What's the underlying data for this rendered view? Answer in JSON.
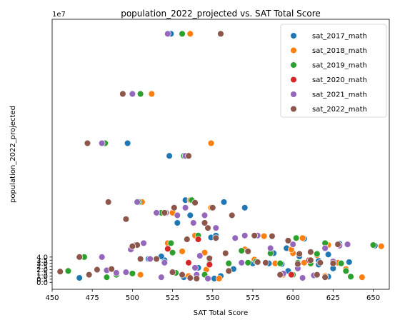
{
  "chart_data": {
    "type": "scatter",
    "title": "population_2022_projected vs. SAT Total Score",
    "xlabel": "SAT Total Score",
    "ylabel": "population_2022_projected",
    "y_multiplier_label": "1e7",
    "xlim": [
      450,
      660
    ],
    "ylim": [
      -1.1,
      41.6
    ],
    "x_ticks": [
      450,
      475,
      500,
      525,
      550,
      575,
      600,
      625,
      650
    ],
    "y_ticks": [
      0.0,
      0.5,
      1.0,
      1.5,
      2.0,
      2.5,
      3.0,
      3.5,
      4.0
    ],
    "y_tick_labels": [
      "0.0",
      "0.5",
      "1.0",
      "1.5",
      "2.0",
      "2.5",
      "3.0",
      "3.5",
      "4.0"
    ],
    "grid": false,
    "legend_position": "top-right",
    "marker_edge_color": "#ffffff",
    "series": [
      {
        "name": "sat_2017_math",
        "color": "#1f77b4",
        "points": [
          [
            524,
            39.3
          ],
          [
            497,
            22.0
          ],
          [
            523,
            20.0
          ],
          [
            533,
            13.0
          ],
          [
            557,
            12.7
          ],
          [
            570,
            11.8
          ],
          [
            536,
            10.6
          ],
          [
            549,
            7.1
          ],
          [
            552,
            7.4
          ],
          [
            528,
            9.4
          ],
          [
            520,
            3.5
          ],
          [
            524,
            6.2
          ],
          [
            534,
            6.8
          ],
          [
            510,
            3.7
          ],
          [
            518,
            4.1
          ],
          [
            541,
            2.3
          ],
          [
            563,
            2.1
          ],
          [
            588,
            4.6
          ],
          [
            596,
            5.4
          ],
          [
            593,
            2.9
          ],
          [
            607,
            6.9
          ],
          [
            616,
            3.4
          ],
          [
            604,
            4.1
          ],
          [
            622,
            4.4
          ],
          [
            629,
            6.1
          ],
          [
            635,
            3.2
          ],
          [
            651,
            5.8
          ],
          [
            614,
            1.1
          ],
          [
            622,
            0.9
          ],
          [
            532,
            0.8
          ],
          [
            555,
            1.0
          ],
          [
            467,
            0.7
          ],
          [
            500,
            1.4
          ],
          [
            551,
            0.6
          ],
          [
            597,
            1.8
          ],
          [
            616,
            2.8
          ],
          [
            585,
            3.0
          ],
          [
            625,
            2.2
          ],
          [
            575,
            3.0
          ]
        ]
      },
      {
        "name": "sat_2018_math",
        "color": "#ff7f0e",
        "points": [
          [
            536,
            39.3
          ],
          [
            512,
            29.8
          ],
          [
            549,
            22.0
          ],
          [
            534,
            20.0
          ],
          [
            536,
            13.0
          ],
          [
            506,
            12.7
          ],
          [
            549,
            11.8
          ],
          [
            528,
            10.6
          ],
          [
            525,
            11.0
          ],
          [
            539,
            7.4
          ],
          [
            522,
            6.2
          ],
          [
            552,
            8.6
          ],
          [
            531,
            4.9
          ],
          [
            546,
            2.0
          ],
          [
            545,
            4.7
          ],
          [
            570,
            5.2
          ],
          [
            576,
            3.6
          ],
          [
            600,
            4.6
          ],
          [
            606,
            7.0
          ],
          [
            594,
            1.2
          ],
          [
            622,
            5.9
          ],
          [
            611,
            2.9
          ],
          [
            628,
            3.1
          ],
          [
            643,
            0.8
          ],
          [
            655,
            5.7
          ],
          [
            620,
            1.0
          ],
          [
            505,
            1.2
          ],
          [
            535,
            1.0
          ],
          [
            554,
            0.6
          ],
          [
            589,
            3.0
          ],
          [
            607,
            3.1
          ],
          [
            582,
            7.3
          ],
          [
            599,
            5.2
          ],
          [
            633,
            2.1
          ],
          [
            615,
            4.3
          ]
        ]
      },
      {
        "name": "sat_2019_math",
        "color": "#2ca02c",
        "points": [
          [
            531,
            39.3
          ],
          [
            505,
            29.8
          ],
          [
            483,
            22.0
          ],
          [
            532,
            20.0
          ],
          [
            537,
            13.0
          ],
          [
            504,
            12.7
          ],
          [
            518,
            11.0
          ],
          [
            524,
            6.2
          ],
          [
            541,
            7.4
          ],
          [
            534,
            6.8
          ],
          [
            470,
            4.0
          ],
          [
            460,
            1.8
          ],
          [
            500,
            1.4
          ],
          [
            527,
            1.5
          ],
          [
            560,
            3.0
          ],
          [
            577,
            3.3
          ],
          [
            568,
            5.0
          ],
          [
            586,
            4.6
          ],
          [
            602,
            7.0
          ],
          [
            620,
            6.2
          ],
          [
            611,
            3.0
          ],
          [
            600,
            1.2
          ],
          [
            633,
            1.8
          ],
          [
            636,
            0.9
          ],
          [
            650,
            5.9
          ],
          [
            615,
            4.5
          ],
          [
            525,
            4.7
          ],
          [
            545,
            1.2
          ],
          [
            592,
            3.0
          ],
          [
            630,
            3.0
          ],
          [
            490,
            1.2
          ],
          [
            572,
            3.1
          ],
          [
            548,
            3.0
          ],
          [
            603,
            3.1
          ],
          [
            484,
            0.8
          ]
        ]
      },
      {
        "name": "sat_2020_math",
        "color": "#d62728",
        "points": [
          [
            541,
            6.8
          ],
          [
            522,
            5.3
          ],
          [
            548,
            2.8
          ],
          [
            610,
            3.5
          ],
          [
            535,
            3.1
          ],
          [
            599,
            1.2
          ]
        ]
      },
      {
        "name": "sat_2021_math",
        "color": "#9467bd",
        "points": [
          [
            522,
            39.3
          ],
          [
            500,
            29.8
          ],
          [
            481,
            22.0
          ],
          [
            533,
            20.0
          ],
          [
            503,
            12.7
          ],
          [
            515,
            11.0
          ],
          [
            533,
            11.8
          ],
          [
            521,
            11.0
          ],
          [
            528,
            10.6
          ],
          [
            538,
            9.4
          ],
          [
            545,
            10.6
          ],
          [
            552,
            8.6
          ],
          [
            502,
            5.9
          ],
          [
            507,
            6.2
          ],
          [
            499,
            5.2
          ],
          [
            511,
            3.7
          ],
          [
            520,
            3.1
          ],
          [
            542,
            4.2
          ],
          [
            564,
            7.0
          ],
          [
            570,
            7.4
          ],
          [
            578,
            7.4
          ],
          [
            600,
            6.0
          ],
          [
            613,
            1.1
          ],
          [
            620,
            5.4
          ],
          [
            629,
            5.8
          ],
          [
            634,
            6.0
          ],
          [
            481,
            4.0
          ],
          [
            484,
            1.9
          ],
          [
            490,
            1.5
          ],
          [
            496,
            1.6
          ],
          [
            518,
            0.8
          ],
          [
            540,
            1.2
          ],
          [
            547,
            0.6
          ],
          [
            568,
            3.1
          ],
          [
            586,
            5.4
          ],
          [
            594,
            1.4
          ],
          [
            606,
            0.7
          ],
          [
            603,
            2.2
          ],
          [
            625,
            3.3
          ],
          [
            539,
            2.3
          ]
        ]
      },
      {
        "name": "sat_2022_math",
        "color": "#8c564b",
        "points": [
          [
            555,
            39.3
          ],
          [
            494,
            29.8
          ],
          [
            472,
            22.0
          ],
          [
            535,
            20.0
          ],
          [
            485,
            12.7
          ],
          [
            526,
            11.8
          ],
          [
            539,
            12.6
          ],
          [
            550,
            11.8
          ],
          [
            562,
            10.6
          ],
          [
            520,
            11.0
          ],
          [
            496,
            10.0
          ],
          [
            547,
            8.6
          ],
          [
            503,
            5.9
          ],
          [
            505,
            3.7
          ],
          [
            534,
            6.8
          ],
          [
            545,
            9.4
          ],
          [
            552,
            7.0
          ],
          [
            576,
            7.4
          ],
          [
            587,
            7.3
          ],
          [
            604,
            4.5
          ],
          [
            611,
            3.5
          ],
          [
            617,
            3.1
          ],
          [
            628,
            6.0
          ],
          [
            625,
            3.0
          ],
          [
            455,
            1.7
          ],
          [
            467,
            4.0
          ],
          [
            473,
            1.2
          ],
          [
            478,
            2.0
          ],
          [
            487,
            2.1
          ],
          [
            500,
            5.7
          ],
          [
            515,
            3.7
          ],
          [
            531,
            1.2
          ],
          [
            548,
            3.8
          ],
          [
            558,
            4.6
          ],
          [
            572,
            4.9
          ],
          [
            597,
            6.6
          ],
          [
            603,
            2.9
          ],
          [
            615,
            1.2
          ],
          [
            620,
            0.8
          ],
          [
            536,
            0.7
          ],
          [
            578,
            3.2
          ],
          [
            592,
            1.2
          ],
          [
            583,
            3.1
          ],
          [
            611,
            4.8
          ],
          [
            525,
            1.6
          ],
          [
            540,
            0.6
          ],
          [
            560,
            1.8
          ]
        ]
      }
    ]
  }
}
